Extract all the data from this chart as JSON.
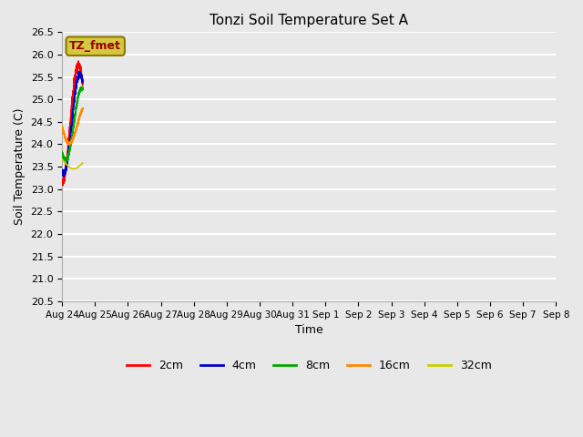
{
  "title": "Tonzi Soil Temperature Set A",
  "xlabel": "Time",
  "ylabel": "Soil Temperature (C)",
  "ylim": [
    20.5,
    26.5
  ],
  "background_color": "#e8e8e8",
  "plot_background": "#e8e8e8",
  "grid_color": "white",
  "annotation_text": "TZ_fmet",
  "annotation_bg": "#d4c840",
  "annotation_border": "#8b7700",
  "series_colors": {
    "2cm": "#ff0000",
    "4cm": "#0000cc",
    "8cm": "#00aa00",
    "16cm": "#ff8800",
    "32cm": "#cccc00"
  },
  "legend_entries": [
    "2cm",
    "4cm",
    "8cm",
    "16cm",
    "32cm"
  ],
  "xtick_labels": [
    "Aug 24",
    "Aug 25",
    "Aug 26",
    "Aug 27",
    "Aug 28",
    "Aug 29",
    "Aug 30",
    "Aug 31",
    "Sep 1",
    "Sep 2",
    "Sep 3",
    "Sep 4",
    "Sep 5",
    "Sep 6",
    "Sep 7",
    "Sep 8"
  ],
  "n_days": 15
}
